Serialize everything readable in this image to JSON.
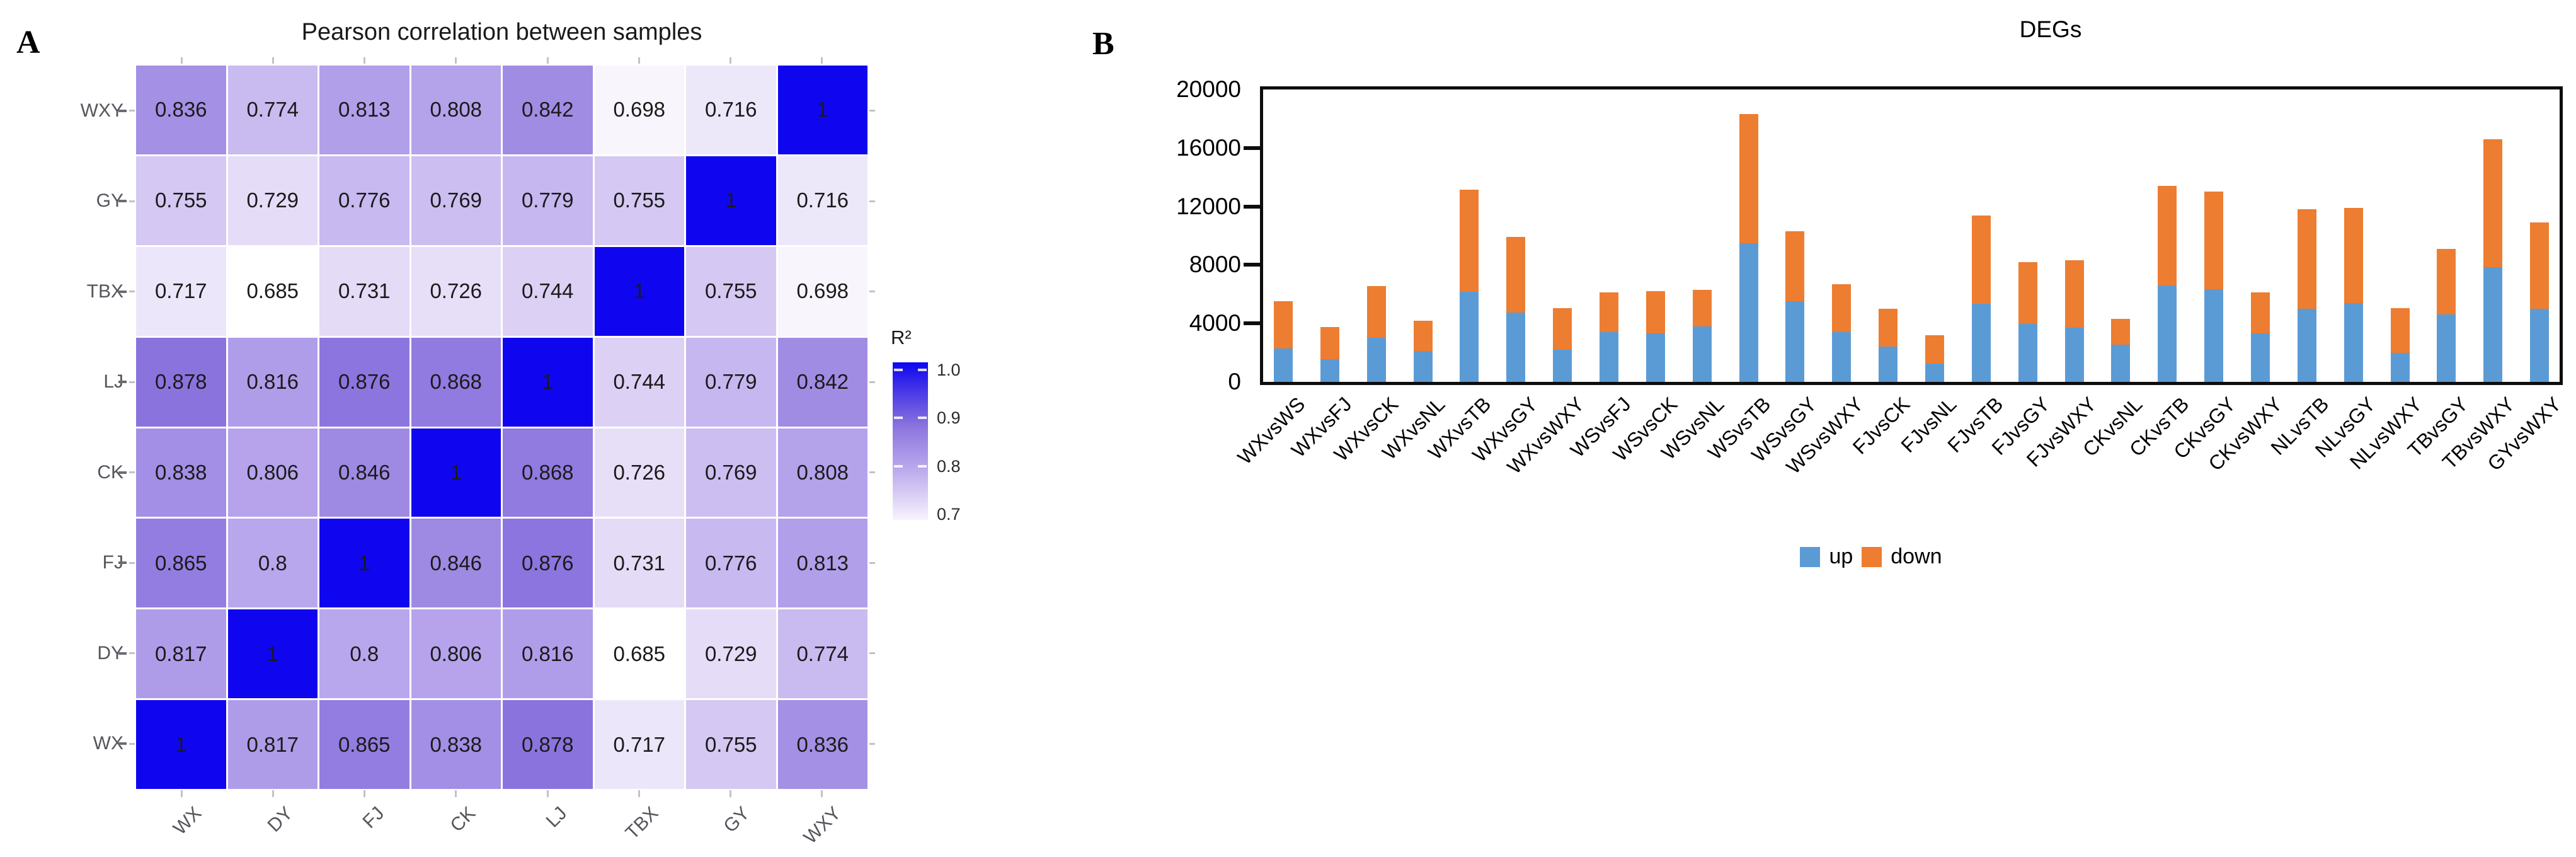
{
  "figure": {
    "panel_a_label": "A",
    "panel_b_label": "B"
  },
  "chart_data": [
    {
      "type": "heatmap",
      "panel": "A",
      "title": "Pearson correlation between samples",
      "rows": [
        "WXY",
        "GY",
        "TBX",
        "LJ",
        "CK",
        "FJ",
        "DY",
        "WX"
      ],
      "columns": [
        "WX",
        "DY",
        "FJ",
        "CK",
        "LJ",
        "TBX",
        "GY",
        "WXY"
      ],
      "values": [
        [
          "0.836",
          "0.774",
          "0.813",
          "0.808",
          "0.842",
          "0.698",
          "0.716",
          "1"
        ],
        [
          "0.755",
          "0.729",
          "0.776",
          "0.769",
          "0.779",
          "0.755",
          "1",
          "0.716"
        ],
        [
          "0.717",
          "0.685",
          "0.731",
          "0.726",
          "0.744",
          "1",
          "0.755",
          "0.698"
        ],
        [
          "0.878",
          "0.816",
          "0.876",
          "0.868",
          "1",
          "0.744",
          "0.779",
          "0.842"
        ],
        [
          "0.838",
          "0.806",
          "0.846",
          "1",
          "0.868",
          "0.726",
          "0.769",
          "0.808"
        ],
        [
          "0.865",
          "0.8",
          "1",
          "0.846",
          "0.876",
          "0.731",
          "0.776",
          "0.813"
        ],
        [
          "0.817",
          "1",
          "0.8",
          "0.806",
          "0.816",
          "0.685",
          "0.729",
          "0.774"
        ],
        [
          "1",
          "0.817",
          "0.865",
          "0.838",
          "0.878",
          "0.717",
          "0.755",
          "0.836"
        ]
      ],
      "legend": {
        "title": "R²",
        "ticks": [
          "1.0",
          "0.9",
          "0.8",
          "0.7"
        ],
        "range": [
          0.7,
          1.0
        ]
      },
      "color_scale": {
        "stops": [
          {
            "value": 0.685,
            "color": "#ffffff"
          },
          {
            "value": 0.7,
            "color": "#f7f3fd"
          },
          {
            "value": 0.75,
            "color": "#d8ccf3"
          },
          {
            "value": 0.8,
            "color": "#b9a7ed"
          },
          {
            "value": 0.85,
            "color": "#9c87e2"
          },
          {
            "value": 0.88,
            "color": "#8a72de"
          },
          {
            "value": 1.0,
            "color": "#0f06ef"
          }
        ]
      }
    },
    {
      "type": "bar",
      "panel": "B",
      "title": "DEGs",
      "stacked": true,
      "categories": [
        "WXvsWS",
        "WXvsFJ",
        "WXvsCK",
        "WXvsNL",
        "WXvsTB",
        "WXvsGY",
        "WXvsWXY",
        "WSvsFJ",
        "WSvsCK",
        "WSvsNL",
        "WSvsTB",
        "WSvsGY",
        "WSvsWXY",
        "FJvsCK",
        "FJvsNL",
        "FJvsTB",
        "FJvsGY",
        "FJvsWXY",
        "CKvsNL",
        "CKvsTB",
        "CKvsGY",
        "CKvsWXY",
        "NLvsTB",
        "NLvsGY",
        "NLvsWXY",
        "TBvsGY",
        "TBvsWXY",
        "GYvsWXY"
      ],
      "series": [
        {
          "name": "up",
          "color": "#5b9bd5",
          "values": [
            2300,
            1550,
            3000,
            2100,
            6150,
            4750,
            2200,
            3400,
            3300,
            3800,
            9500,
            5500,
            3400,
            2400,
            1250,
            5350,
            3950,
            3700,
            2550,
            6600,
            6350,
            3300,
            5000,
            5400,
            2000,
            4600,
            7850,
            5000
          ]
        },
        {
          "name": "down",
          "color": "#ed7d31",
          "values": [
            3200,
            2200,
            3550,
            2100,
            7000,
            5150,
            2850,
            2700,
            2900,
            2500,
            8800,
            4800,
            3300,
            2600,
            1950,
            6050,
            4250,
            4600,
            1750,
            6800,
            6650,
            2800,
            6800,
            6500,
            3050,
            4500,
            8750,
            5900
          ]
        }
      ],
      "ylabel": "",
      "xlabel": "",
      "ylim": [
        0,
        20000
      ],
      "y_ticks": [
        "0",
        "4000",
        "8000",
        "12000",
        "16000",
        "20000"
      ],
      "grid": false,
      "legend_position": "bottom"
    }
  ]
}
